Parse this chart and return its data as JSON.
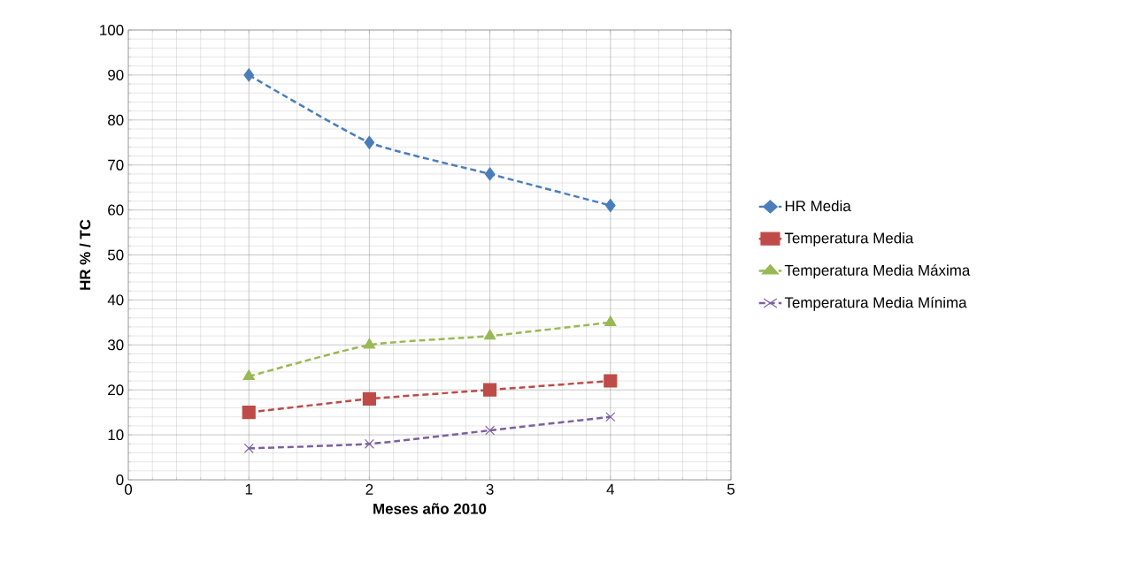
{
  "chart_data": {
    "type": "line",
    "xlabel": "Meses año 2010",
    "ylabel": "HR % / TC",
    "x": [
      1,
      2,
      3,
      4
    ],
    "series": [
      {
        "name": "HR Media",
        "color": "#4a7ebb",
        "marker": "diamond",
        "values": [
          90,
          75,
          68,
          61
        ]
      },
      {
        "name": "Temperatura Media",
        "color": "#be4b48",
        "marker": "square",
        "values": [
          15,
          18,
          20,
          22
        ]
      },
      {
        "name": "Temperatura Media Máxima",
        "color": "#98b954",
        "marker": "triangle",
        "values": [
          23,
          30,
          32,
          35
        ]
      },
      {
        "name": "Temperatura Media Mínima",
        "color": "#7d60a0",
        "marker": "cross",
        "values": [
          7,
          8,
          11,
          14
        ]
      }
    ],
    "line_style": "dashed",
    "grid": true,
    "legend": "right",
    "xlim": [
      0,
      5
    ],
    "xticks": [
      0,
      1,
      2,
      3,
      4,
      5
    ],
    "ylim": [
      0,
      100
    ],
    "yticks": [
      0,
      10,
      20,
      30,
      40,
      50,
      60,
      70,
      80,
      90,
      100
    ]
  }
}
